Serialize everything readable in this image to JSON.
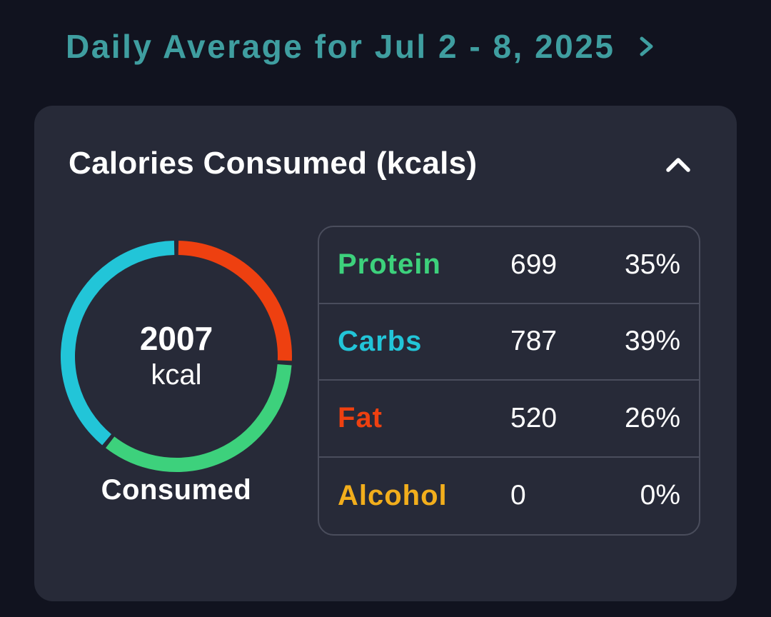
{
  "header": {
    "title": "Daily Average for Jul 2 - 8, 2025",
    "title_color": "#3f9ea0",
    "chevron_icon": "chevron-right-icon"
  },
  "card": {
    "title": "Calories Consumed (kcals)",
    "collapse_icon": "chevron-up-icon",
    "donut": {
      "total_value": "2007",
      "unit": "kcal",
      "caption": "Consumed",
      "segments": [
        {
          "name": "Protein",
          "kcal": 699,
          "color": "#3dd17c"
        },
        {
          "name": "Carbs",
          "kcal": 787,
          "color": "#22c5d8"
        },
        {
          "name": "Fat",
          "kcal": 520,
          "color": "#ee4010"
        },
        {
          "name": "Alcohol",
          "kcal": 0,
          "color": "#f2ae1c"
        }
      ]
    },
    "macros": [
      {
        "name": "Protein",
        "kcal": "699",
        "percent": "35%",
        "color": "#3dd17c"
      },
      {
        "name": "Carbs",
        "kcal": "787",
        "percent": "39%",
        "color": "#22c5d8"
      },
      {
        "name": "Fat",
        "kcal": "520",
        "percent": "26%",
        "color": "#ee4010"
      },
      {
        "name": "Alcohol",
        "kcal": "0",
        "percent": "0%",
        "color": "#f2ae1c"
      }
    ]
  }
}
